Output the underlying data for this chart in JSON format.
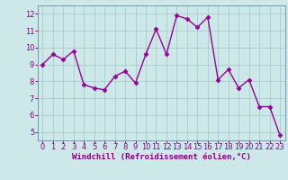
{
  "x": [
    0,
    1,
    2,
    3,
    4,
    5,
    6,
    7,
    8,
    9,
    10,
    11,
    12,
    13,
    14,
    15,
    16,
    17,
    18,
    19,
    20,
    21,
    22,
    23
  ],
  "y": [
    9.0,
    9.6,
    9.3,
    9.8,
    7.8,
    7.6,
    7.5,
    8.3,
    8.6,
    7.9,
    9.6,
    11.1,
    9.6,
    11.9,
    11.7,
    11.2,
    11.8,
    8.1,
    8.7,
    7.6,
    8.1,
    6.5,
    6.5,
    4.8
  ],
  "line_color": "#990099",
  "marker": "D",
  "marker_size": 2.5,
  "line_width": 1.0,
  "bg_color": "#cce8e8",
  "grid_color": "#aacccc",
  "xlabel": "Windchill (Refroidissement éolien,°C)",
  "xlabel_color": "#880088",
  "xlabel_fontsize": 6.5,
  "tick_color": "#880088",
  "tick_fontsize": 6.0,
  "ylim": [
    4.5,
    12.5
  ],
  "xlim": [
    -0.5,
    23.5
  ],
  "yticks": [
    5,
    6,
    7,
    8,
    9,
    10,
    11,
    12
  ],
  "xticks": [
    0,
    1,
    2,
    3,
    4,
    5,
    6,
    7,
    8,
    9,
    10,
    11,
    12,
    13,
    14,
    15,
    16,
    17,
    18,
    19,
    20,
    21,
    22,
    23
  ]
}
